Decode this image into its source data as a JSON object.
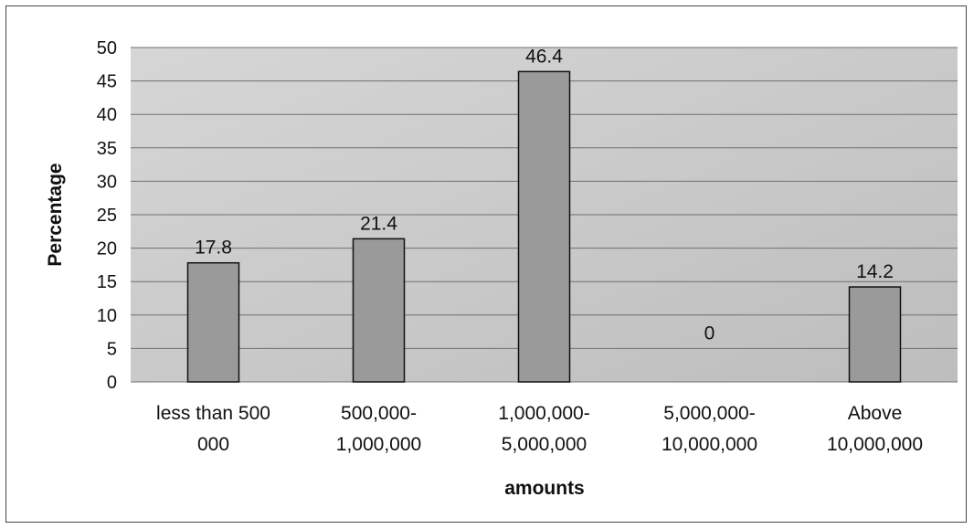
{
  "chart_data": {
    "type": "bar",
    "title": "",
    "xlabel": "amounts",
    "ylabel": "Percentage",
    "ylim": [
      0,
      50
    ],
    "yticks": [
      0,
      5,
      10,
      15,
      20,
      25,
      30,
      35,
      40,
      45,
      50
    ],
    "grid": true,
    "legend": "none",
    "categories": [
      [
        "less than 500",
        "000"
      ],
      [
        "500,000-",
        "1,000,000"
      ],
      [
        "1,000,000-",
        "5,000,000"
      ],
      [
        "5,000,000-",
        "10,000,000"
      ],
      [
        "Above",
        "10,000,000"
      ]
    ],
    "values": [
      17.8,
      21.4,
      46.4,
      0,
      14.2
    ],
    "data_labels": [
      "17.8",
      "21.4",
      "46.4",
      "0",
      "14.2"
    ],
    "colors": {
      "plot_background": "#c8c8c8",
      "bar_fill": "#9a9a9a",
      "bar_stroke": "#111111",
      "gridline": "#6f6f6f"
    }
  }
}
